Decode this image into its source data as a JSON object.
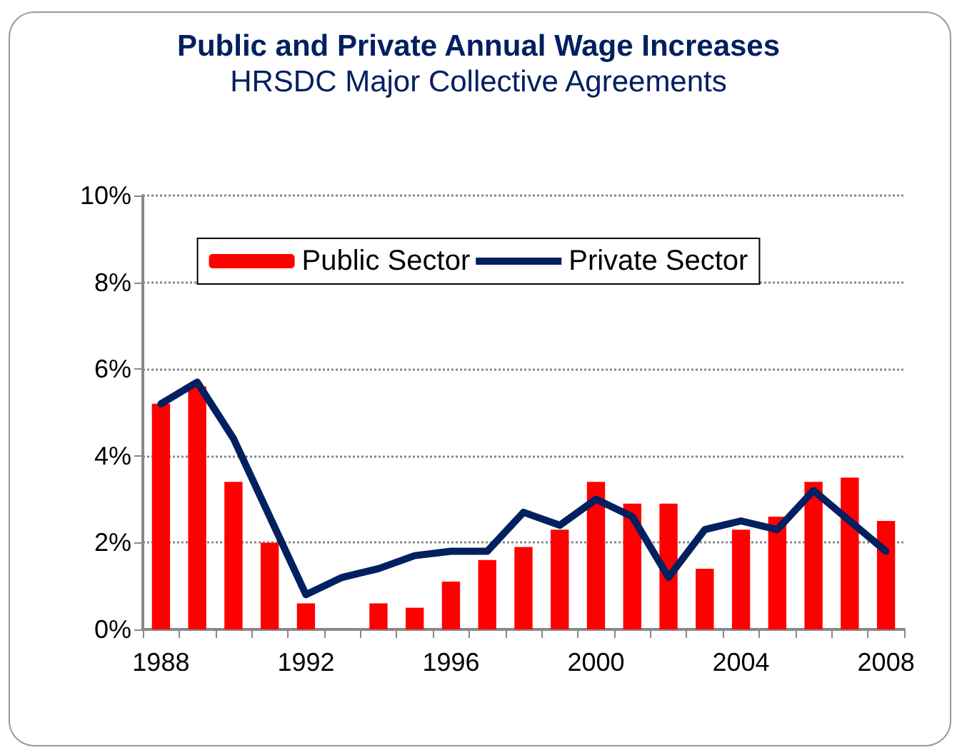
{
  "chart_data": {
    "type": "bar",
    "title": "Public and Private Annual Wage Increases",
    "subtitle": "HRSDC Major Collective Agreements",
    "categories": [
      "1988",
      null,
      null,
      null,
      "1992",
      null,
      null,
      null,
      "1996",
      null,
      null,
      null,
      "2000",
      null,
      null,
      null,
      "2004",
      null,
      null,
      null,
      "2008"
    ],
    "series": [
      {
        "name": "Public Sector",
        "color": "#ff0000",
        "values": [
          5.2,
          5.6,
          3.4,
          2.0,
          0.6,
          0,
          0.6,
          0.5,
          1.1,
          1.6,
          1.9,
          2.3,
          3.4,
          2.9,
          2.9,
          1.4,
          2.3,
          2.6,
          3.4,
          3.5,
          2.5
        ]
      },
      {
        "name": "Private Sector",
        "type": "line",
        "color": "#002060",
        "values": [
          5.2,
          5.7,
          4.4,
          2.6,
          0.8,
          1.2,
          1.4,
          1.7,
          1.8,
          1.8,
          2.7,
          2.4,
          3.0,
          2.6,
          1.2,
          2.3,
          2.5,
          2.3,
          3.2,
          2.5,
          1.8
        ]
      }
    ],
    "ylim": [
      0,
      10
    ],
    "yticks": [
      {
        "value": 0,
        "label": "0%"
      },
      {
        "value": 2,
        "label": "2%"
      },
      {
        "value": 4,
        "label": "4%"
      },
      {
        "value": 6,
        "label": "6%"
      },
      {
        "value": 8,
        "label": "8%"
      },
      {
        "value": 10,
        "label": "10%"
      }
    ],
    "grid": "y",
    "legend": "top",
    "marker": "none",
    "line_style": "solid"
  }
}
